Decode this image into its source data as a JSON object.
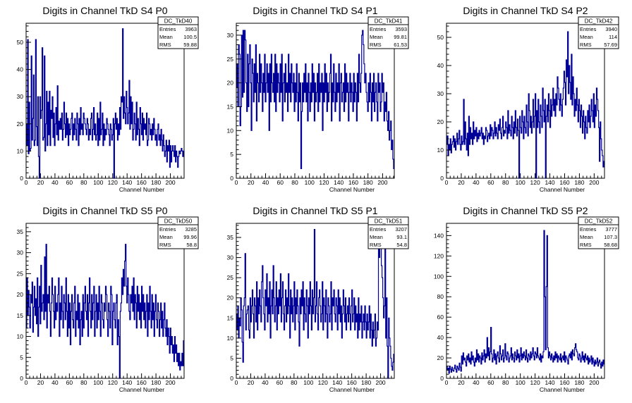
{
  "colors": {
    "line": "#000099",
    "axis": "#000000",
    "background": "#ffffff"
  },
  "chart_data": [
    {
      "type": "histogram",
      "title": "Digits in Channel TkD S4 P0",
      "xlabel": "Channel Number",
      "ylabel": "",
      "xlim": [
        0,
        219
      ],
      "ylim": [
        0,
        57
      ],
      "xticks": [
        "0",
        "20",
        "40",
        "60",
        "80",
        "100",
        "120",
        "140",
        "160",
        "180",
        "200"
      ],
      "yticks": [
        "0",
        "10",
        "20",
        "30",
        "40",
        "50"
      ],
      "stats": {
        "name": "DC_TkD40",
        "entries": "3963",
        "mean": "100.5",
        "rms": "59.88"
      },
      "values": [
        20,
        12,
        51,
        9,
        28,
        10,
        11,
        45,
        14,
        22,
        38,
        12,
        14,
        51,
        19,
        12,
        30,
        8,
        0,
        30,
        22,
        25,
        48,
        14,
        15,
        45,
        10,
        20,
        32,
        12,
        28,
        16,
        32,
        12,
        25,
        22,
        30,
        15,
        24,
        12,
        20,
        26,
        16,
        34,
        14,
        21,
        18,
        22,
        18,
        24,
        14,
        18,
        28,
        20,
        15,
        24,
        16,
        22,
        12,
        20,
        16,
        18,
        22,
        24,
        14,
        20,
        16,
        22,
        18,
        14,
        24,
        20,
        12,
        22,
        16,
        26,
        18,
        20,
        16,
        24,
        22,
        20,
        18,
        16,
        22,
        20,
        14,
        18,
        16,
        22,
        24,
        14,
        18,
        26,
        16,
        20,
        14,
        16,
        24,
        12,
        22,
        14,
        28,
        16,
        18,
        24,
        12,
        20,
        14,
        18,
        16,
        22,
        20,
        18,
        16,
        12,
        20,
        18,
        14,
        16,
        22,
        0,
        20,
        24,
        18,
        22,
        14,
        20,
        16,
        26,
        18,
        30,
        28,
        55,
        22,
        30,
        24,
        20,
        32,
        26,
        20,
        24,
        36,
        18,
        30,
        20,
        28,
        14,
        18,
        24,
        20,
        14,
        28,
        16,
        22,
        18,
        12,
        26,
        20,
        16,
        24,
        14,
        22,
        18,
        20,
        16,
        24,
        12,
        14,
        22,
        20,
        16,
        18,
        14,
        20,
        16,
        22,
        18,
        14,
        16,
        12,
        18,
        20,
        14,
        16,
        12,
        18,
        14,
        10,
        16,
        12,
        8,
        10,
        14,
        6,
        12,
        10,
        14,
        4,
        12,
        6,
        10,
        12,
        10,
        8,
        12,
        6,
        10,
        8,
        4,
        8,
        10,
        9,
        10,
        11,
        10,
        8,
        10
      ]
    },
    {
      "type": "histogram",
      "title": "Digits in Channel TkD S4 P1",
      "xlabel": "Channel Number",
      "ylabel": "",
      "xlim": [
        0,
        216
      ],
      "ylim": [
        0,
        32.5
      ],
      "xticks": [
        "0",
        "20",
        "40",
        "60",
        "80",
        "100",
        "120",
        "140",
        "160",
        "180",
        "200"
      ],
      "yticks": [
        "0",
        "5",
        "10",
        "15",
        "20",
        "25",
        "30"
      ],
      "stats": {
        "name": "DC_TkD41",
        "entries": "3593",
        "mean": "99.81",
        "rms": "61.53"
      },
      "values": [
        19,
        24,
        15,
        28,
        26,
        11,
        15,
        30,
        17,
        31,
        18,
        31,
        29,
        20,
        14,
        26,
        15,
        24,
        28,
        20,
        10,
        25,
        22,
        16,
        24,
        18,
        28,
        12,
        22,
        20,
        16,
        26,
        18,
        24,
        20,
        14,
        22,
        18,
        26,
        16,
        20,
        24,
        18,
        22,
        10,
        24,
        16,
        26,
        20,
        18,
        22,
        16,
        26,
        14,
        24,
        18,
        22,
        20,
        16,
        24,
        18,
        26,
        12,
        20,
        22,
        16,
        24,
        18,
        20,
        14,
        26,
        18,
        22,
        16,
        24,
        20,
        18,
        22,
        14,
        20,
        16,
        24,
        18,
        12,
        22,
        16,
        20,
        2,
        14,
        20,
        16,
        22,
        18,
        24,
        16,
        20,
        12,
        22,
        18,
        14,
        20,
        16,
        24,
        18,
        22,
        12,
        20,
        16,
        18,
        22,
        14,
        24,
        16,
        20,
        18,
        22,
        10,
        20,
        16,
        24,
        18,
        22,
        14,
        20,
        16,
        18,
        22,
        26,
        12,
        20,
        16,
        24,
        18,
        14,
        22,
        16,
        20,
        18,
        24,
        12,
        20,
        22,
        16,
        18,
        20,
        14,
        24,
        16,
        22,
        18,
        20,
        12,
        18,
        22,
        16,
        20,
        18,
        14,
        22,
        16,
        20,
        18,
        12,
        22,
        16,
        26,
        20,
        18,
        22,
        30,
        31,
        28,
        24,
        20,
        22,
        18,
        16,
        14,
        20,
        16,
        22,
        18,
        12,
        20,
        16,
        22,
        14,
        18,
        20,
        16,
        12,
        22,
        18,
        20,
        14,
        16,
        22,
        18,
        20,
        12,
        16,
        14,
        18,
        12,
        10,
        14,
        8,
        10,
        12,
        6,
        8,
        4,
        2
      ]
    },
    {
      "type": "histogram",
      "title": "Digits in Channel TkD S4 P2",
      "xlabel": "Channel Number",
      "ylabel": "",
      "xlim": [
        0,
        214
      ],
      "ylim": [
        0,
        55
      ],
      "xticks": [
        "0",
        "20",
        "40",
        "60",
        "80",
        "100",
        "120",
        "140",
        "160",
        "180",
        "200"
      ],
      "yticks": [
        "0",
        "10",
        "20",
        "30",
        "40",
        "50"
      ],
      "stats": {
        "name": "DC_TkD42",
        "entries": "3940",
        "mean": "114",
        "rms": "57.69"
      },
      "values": [
        12,
        15,
        8,
        12,
        10,
        14,
        9,
        12,
        13,
        15,
        11,
        14,
        10,
        13,
        16,
        12,
        14,
        17,
        12,
        10,
        15,
        12,
        13,
        28,
        12,
        20,
        14,
        10,
        16,
        8,
        22,
        12,
        18,
        14,
        16,
        12,
        20,
        14,
        17,
        15,
        18,
        13,
        16,
        14,
        17,
        15,
        16,
        18,
        14,
        16,
        12,
        15,
        14,
        18,
        17,
        13,
        15,
        16,
        14,
        19,
        15,
        18,
        17,
        14,
        16,
        20,
        15,
        18,
        16,
        14,
        19,
        17,
        21,
        16,
        14,
        18,
        22,
        15,
        17,
        16,
        20,
        18,
        14,
        24,
        16,
        19,
        17,
        15,
        22,
        18,
        14,
        20,
        16,
        24,
        18,
        15,
        21,
        17,
        0,
        22,
        18,
        16,
        24,
        20,
        14,
        22,
        18,
        16,
        26,
        20,
        15,
        30,
        24,
        18,
        22,
        16,
        20,
        28,
        18,
        22,
        30,
        0,
        24,
        18,
        28,
        20,
        16,
        26,
        22,
        18,
        32,
        24,
        20,
        28,
        0,
        22,
        26,
        20,
        30,
        24,
        18,
        28,
        22,
        26,
        32,
        24,
        28,
        22,
        30,
        26,
        36,
        32,
        28,
        24,
        30,
        26,
        22,
        28,
        32,
        38,
        34,
        26,
        42,
        36,
        52,
        30,
        40,
        34,
        28,
        44,
        26,
        36,
        30,
        22,
        28,
        24,
        32,
        26,
        20,
        28,
        24,
        18,
        26,
        22,
        16,
        24,
        20,
        14,
        22,
        18,
        16,
        24,
        20,
        26,
        18,
        22,
        28,
        24,
        20,
        30,
        18,
        26,
        22,
        32,
        28,
        24,
        18,
        6,
        20,
        14,
        10,
        8,
        4,
        6
      ]
    },
    {
      "type": "histogram",
      "title": "Digits in Channel TkD S5 P0",
      "xlabel": "Channel Number",
      "ylabel": "",
      "xlim": [
        0,
        219
      ],
      "ylim": [
        0,
        37
      ],
      "xticks": [
        "0",
        "20",
        "40",
        "60",
        "80",
        "100",
        "120",
        "140",
        "160",
        "180",
        "200"
      ],
      "yticks": [
        "0",
        "5",
        "10",
        "15",
        "20",
        "25",
        "30",
        "35"
      ],
      "stats": {
        "name": "DC_TkD50",
        "entries": "3285",
        "mean": "99.96",
        "rms": "58.8"
      },
      "values": [
        12,
        24,
        15,
        21,
        17,
        12,
        20,
        18,
        23,
        11,
        17,
        22,
        15,
        19,
        13,
        24,
        10,
        17,
        22,
        13,
        27,
        16,
        18,
        20,
        14,
        29,
        16,
        32,
        12,
        20,
        18,
        22,
        16,
        10,
        18,
        24,
        20,
        16,
        12,
        22,
        14,
        18,
        16,
        20,
        24,
        10,
        18,
        14,
        22,
        16,
        12,
        20,
        18,
        14,
        24,
        16,
        10,
        20,
        12,
        18,
        8,
        16,
        20,
        14,
        12,
        18,
        22,
        10,
        16,
        14,
        20,
        12,
        18,
        8,
        14,
        16,
        10,
        20,
        12,
        18,
        22,
        16,
        14,
        20,
        10,
        18,
        24,
        16,
        12,
        20,
        14,
        18,
        22,
        10,
        16,
        20,
        12,
        18,
        14,
        22,
        16,
        10,
        20,
        18,
        14,
        12,
        18,
        16,
        22,
        20,
        14,
        10,
        18,
        16,
        12,
        22,
        20,
        8,
        16,
        18,
        14,
        12,
        18,
        20,
        8,
        14,
        10,
        0,
        16,
        18,
        24,
        20,
        26,
        22,
        28,
        32,
        22,
        18,
        24,
        20,
        16,
        14,
        20,
        18,
        22,
        16,
        24,
        14,
        20,
        18,
        12,
        22,
        16,
        20,
        14,
        18,
        12,
        22,
        16,
        20,
        14,
        18,
        12,
        16,
        20,
        10,
        18,
        14,
        22,
        16,
        12,
        20,
        14,
        18,
        10,
        16,
        20,
        14,
        12,
        18,
        16,
        10,
        14,
        18,
        12,
        16,
        10,
        14,
        18,
        12,
        10,
        14,
        8,
        12,
        10,
        6,
        12,
        8,
        10,
        6,
        8,
        4,
        10,
        6,
        8,
        4,
        6,
        3,
        6,
        2,
        4,
        3,
        6,
        3,
        9
      ]
    },
    {
      "type": "histogram",
      "title": "Digits in Channel TkD S5 P1",
      "xlabel": "Channel Number",
      "ylabel": "",
      "xlim": [
        0,
        219
      ],
      "ylim": [
        0,
        38.5
      ],
      "xticks": [
        "0",
        "20",
        "40",
        "60",
        "80",
        "100",
        "120",
        "140",
        "160",
        "180",
        "200"
      ],
      "yticks": [
        "0",
        "5",
        "10",
        "15",
        "20",
        "25",
        "30",
        "35"
      ],
      "stats": {
        "name": "DC_TkD51",
        "entries": "3207",
        "mean": "93.1",
        "rms": "54.8"
      },
      "values": [
        16,
        12,
        18,
        10,
        15,
        13,
        20,
        17,
        9,
        4,
        18,
        20,
        31,
        12,
        16,
        17,
        18,
        12,
        10,
        20,
        14,
        18,
        22,
        16,
        10,
        20,
        18,
        14,
        24,
        12,
        20,
        16,
        22,
        18,
        14,
        24,
        28,
        20,
        16,
        12,
        22,
        18,
        26,
        14,
        20,
        16,
        24,
        10,
        18,
        22,
        16,
        28,
        20,
        14,
        18,
        24,
        12,
        20,
        16,
        22,
        18,
        26,
        14,
        20,
        24,
        16,
        12,
        18,
        22,
        14,
        20,
        16,
        26,
        18,
        10,
        22,
        16,
        20,
        14,
        18,
        24,
        12,
        20,
        16,
        22,
        18,
        14,
        8,
        20,
        16,
        22,
        18,
        24,
        12,
        20,
        16,
        14,
        22,
        18,
        10,
        20,
        16,
        24,
        18,
        12,
        22,
        16,
        20,
        37,
        14,
        18,
        24,
        16,
        12,
        20,
        22,
        18,
        14,
        16,
        24,
        12,
        20,
        18,
        14,
        22,
        16,
        10,
        20,
        18,
        14,
        16,
        24,
        12,
        20,
        18,
        22,
        16,
        14,
        20,
        18,
        12,
        22,
        16,
        20,
        14,
        18,
        10,
        16,
        22,
        18,
        14,
        20,
        12,
        16,
        18,
        14,
        20,
        16,
        12,
        18,
        22,
        14,
        16,
        20,
        12,
        18,
        14,
        16,
        10,
        20,
        12,
        16,
        14,
        18,
        10,
        14,
        16,
        12,
        18,
        14,
        10,
        16,
        12,
        14,
        18,
        10,
        16,
        12,
        8,
        14,
        10,
        12,
        16,
        8,
        10,
        14,
        12,
        35,
        30,
        37,
        33,
        28,
        25,
        20,
        15,
        18,
        32,
        10,
        20,
        8,
        0,
        15,
        10,
        8,
        5,
        3,
        2,
        4,
        6
      ]
    },
    {
      "type": "histogram",
      "title": "Digits in Channel TkD S5 P2",
      "xlabel": "Channel Number",
      "ylabel": "",
      "xlim": [
        0,
        214
      ],
      "ylim": [
        0,
        152
      ],
      "xticks": [
        "0",
        "20",
        "40",
        "60",
        "80",
        "100",
        "120",
        "140",
        "160",
        "180",
        "200"
      ],
      "yticks": [
        "0",
        "20",
        "40",
        "60",
        "80",
        "100",
        "120",
        "140"
      ],
      "stats": {
        "name": "DC_TkD52",
        "entries": "3777",
        "mean": "107.3",
        "rms": "58.68"
      },
      "values": [
        12,
        8,
        10,
        5,
        12,
        9,
        6,
        11,
        8,
        7,
        10,
        13,
        9,
        6,
        12,
        10,
        8,
        15,
        11,
        7,
        22,
        14,
        25,
        18,
        20,
        16,
        12,
        22,
        18,
        24,
        16,
        20,
        14,
        26,
        18,
        22,
        16,
        12,
        20,
        16,
        28,
        18,
        24,
        16,
        22,
        20,
        14,
        25,
        18,
        22,
        28,
        16,
        24,
        20,
        40,
        22,
        30,
        18,
        26,
        50,
        24,
        16,
        20,
        28,
        18,
        24,
        14,
        22,
        26,
        20,
        16,
        32,
        24,
        18,
        22,
        28,
        16,
        20,
        34,
        22,
        18,
        26,
        24,
        16,
        20,
        22,
        30,
        18,
        24,
        20,
        16,
        26,
        22,
        18,
        28,
        20,
        24,
        16,
        22,
        30,
        18,
        24,
        20,
        26,
        22,
        18,
        28,
        20,
        16,
        24,
        22,
        18,
        26,
        20,
        24,
        30,
        22,
        18,
        26,
        24,
        20,
        30,
        22,
        20,
        18,
        24,
        16,
        22,
        20,
        26,
        145,
        80,
        28,
        90,
        140,
        30,
        20,
        26,
        22,
        18,
        24,
        20,
        16,
        22,
        18,
        26,
        20,
        24,
        16,
        22,
        20,
        18,
        24,
        16,
        20,
        22,
        18,
        26,
        16,
        22,
        20,
        18,
        14,
        22,
        24,
        20,
        26,
        18,
        28,
        24,
        22,
        30,
        34,
        28,
        26,
        20,
        18,
        24,
        22,
        16,
        20,
        26,
        18,
        22,
        16,
        24,
        20,
        18,
        22,
        14,
        20,
        16,
        18,
        22,
        14,
        20,
        16,
        12,
        18,
        14,
        16,
        20,
        12,
        16,
        18,
        14,
        10,
        16,
        12,
        18,
        14
      ]
    }
  ]
}
